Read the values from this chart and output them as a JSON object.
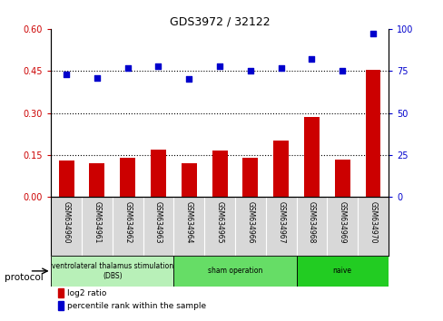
{
  "title": "GDS3972 / 32122",
  "samples": [
    "GSM634960",
    "GSM634961",
    "GSM634962",
    "GSM634963",
    "GSM634964",
    "GSM634965",
    "GSM634966",
    "GSM634967",
    "GSM634968",
    "GSM634969",
    "GSM634970"
  ],
  "log2_ratio": [
    0.13,
    0.12,
    0.14,
    0.17,
    0.12,
    0.165,
    0.14,
    0.2,
    0.285,
    0.135,
    0.455
  ],
  "percentile_rank": [
    73,
    71,
    77,
    78,
    70,
    78,
    75,
    77,
    82,
    75,
    97
  ],
  "bar_color": "#cc0000",
  "dot_color": "#0000cc",
  "ylim_left": [
    0,
    0.6
  ],
  "ylim_right": [
    0,
    100
  ],
  "yticks_left": [
    0,
    0.15,
    0.3,
    0.45,
    0.6
  ],
  "yticks_right": [
    0,
    25,
    50,
    75,
    100
  ],
  "hlines": [
    0.15,
    0.3,
    0.45
  ],
  "protocols": [
    {
      "label": "ventrolateral thalamus stimulation\n(DBS)",
      "start": 0,
      "end": 3
    },
    {
      "label": "sham operation",
      "start": 4,
      "end": 7
    },
    {
      "label": "naive",
      "start": 8,
      "end": 10
    }
  ],
  "protocol_bg_colors": [
    "#b8f0b8",
    "#66dd66",
    "#22cc22"
  ],
  "protocol_label": "protocol",
  "legend": [
    {
      "label": "log2 ratio",
      "color": "#cc0000"
    },
    {
      "label": "percentile rank within the sample",
      "color": "#0000cc"
    }
  ],
  "bar_width": 0.5,
  "label_box_color": "#d8d8d8",
  "xlim": [
    -0.5,
    10.5
  ]
}
